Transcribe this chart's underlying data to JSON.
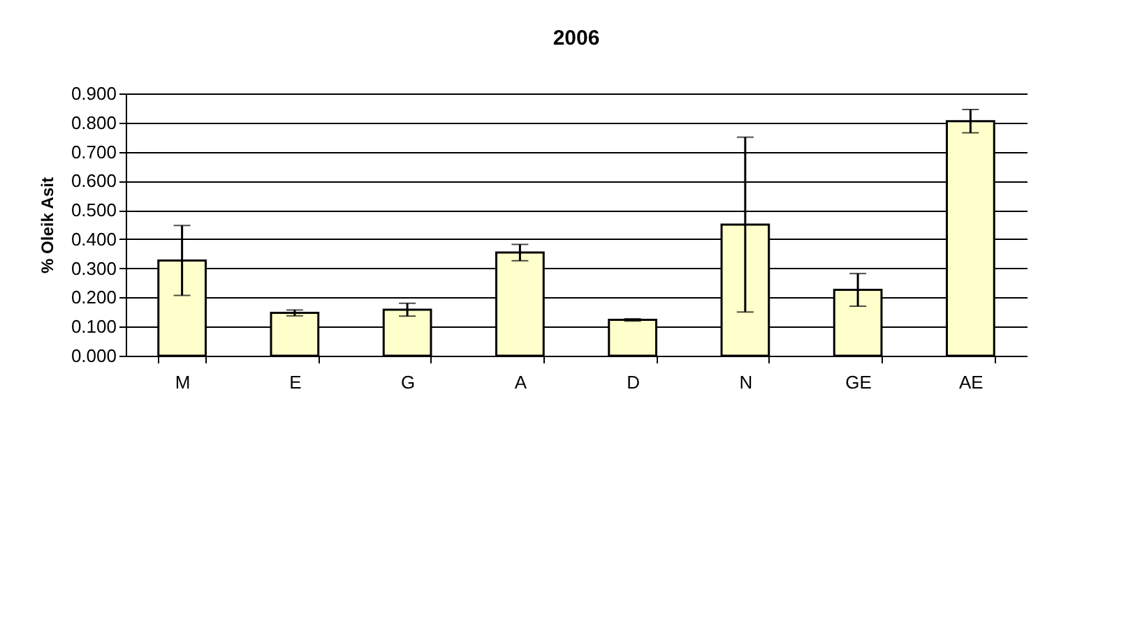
{
  "chart_data": {
    "type": "bar",
    "title": "2006",
    "ylabel": "% Oleik Asit",
    "categories": [
      "M",
      "E",
      "G",
      "A",
      "D",
      "N",
      "GE",
      "AE"
    ],
    "values": [
      0.327,
      0.147,
      0.158,
      0.354,
      0.123,
      0.45,
      0.226,
      0.805
    ],
    "errors": [
      0.12,
      0.01,
      0.022,
      0.028,
      0.004,
      0.3,
      0.056,
      0.04
    ],
    "color": "#ffffcc",
    "ylim": [
      0,
      0.9
    ],
    "yticks": [
      {
        "value": 0,
        "label": "0.000"
      },
      {
        "value": 0.1,
        "label": "0.100"
      },
      {
        "value": 0.2,
        "label": "0.200"
      },
      {
        "value": 0.3,
        "label": "0.300"
      },
      {
        "value": 0.4,
        "label": "0.400"
      },
      {
        "value": 0.5,
        "label": "0.500"
      },
      {
        "value": 0.6,
        "label": "0.600"
      },
      {
        "value": 0.7,
        "label": "0.700"
      },
      {
        "value": 0.8,
        "label": "0.800"
      },
      {
        "value": 0.9,
        "label": "0.900"
      }
    ],
    "grid": "y"
  }
}
